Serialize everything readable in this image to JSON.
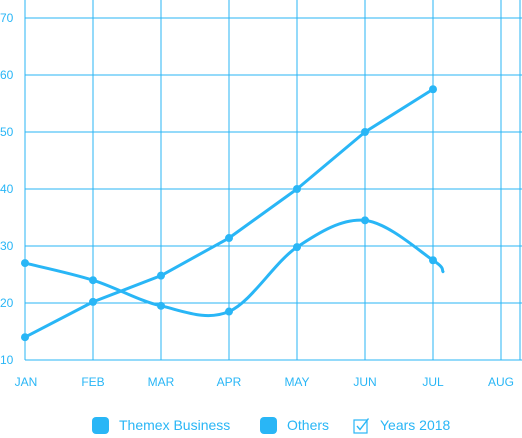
{
  "chart_data": {
    "type": "line",
    "categories": [
      "JAN",
      "FEB",
      "MAR",
      "APR",
      "MAY",
      "JUN",
      "JUL",
      "AUG"
    ],
    "y_ticks": [
      10,
      20,
      30,
      40,
      50,
      60,
      70
    ],
    "ylim": [
      10,
      70
    ],
    "grid": true,
    "series": [
      {
        "name": "Themex Business",
        "style": "straight",
        "values": [
          14,
          20.2,
          24.8,
          31.4,
          40,
          50,
          57.5,
          null
        ]
      },
      {
        "name": "Others",
        "style": "smooth",
        "values": [
          27,
          24,
          19.5,
          18.5,
          29.8,
          34.5,
          27.5,
          null
        ],
        "tail": 25.5
      }
    ],
    "line_color": "#29b6f6",
    "grid_color": "#29b6f6"
  },
  "legend": [
    {
      "label": "Themex Business",
      "marker": "square"
    },
    {
      "label": "Others",
      "marker": "square"
    },
    {
      "label": "Years 2018",
      "marker": "checkbox"
    }
  ]
}
